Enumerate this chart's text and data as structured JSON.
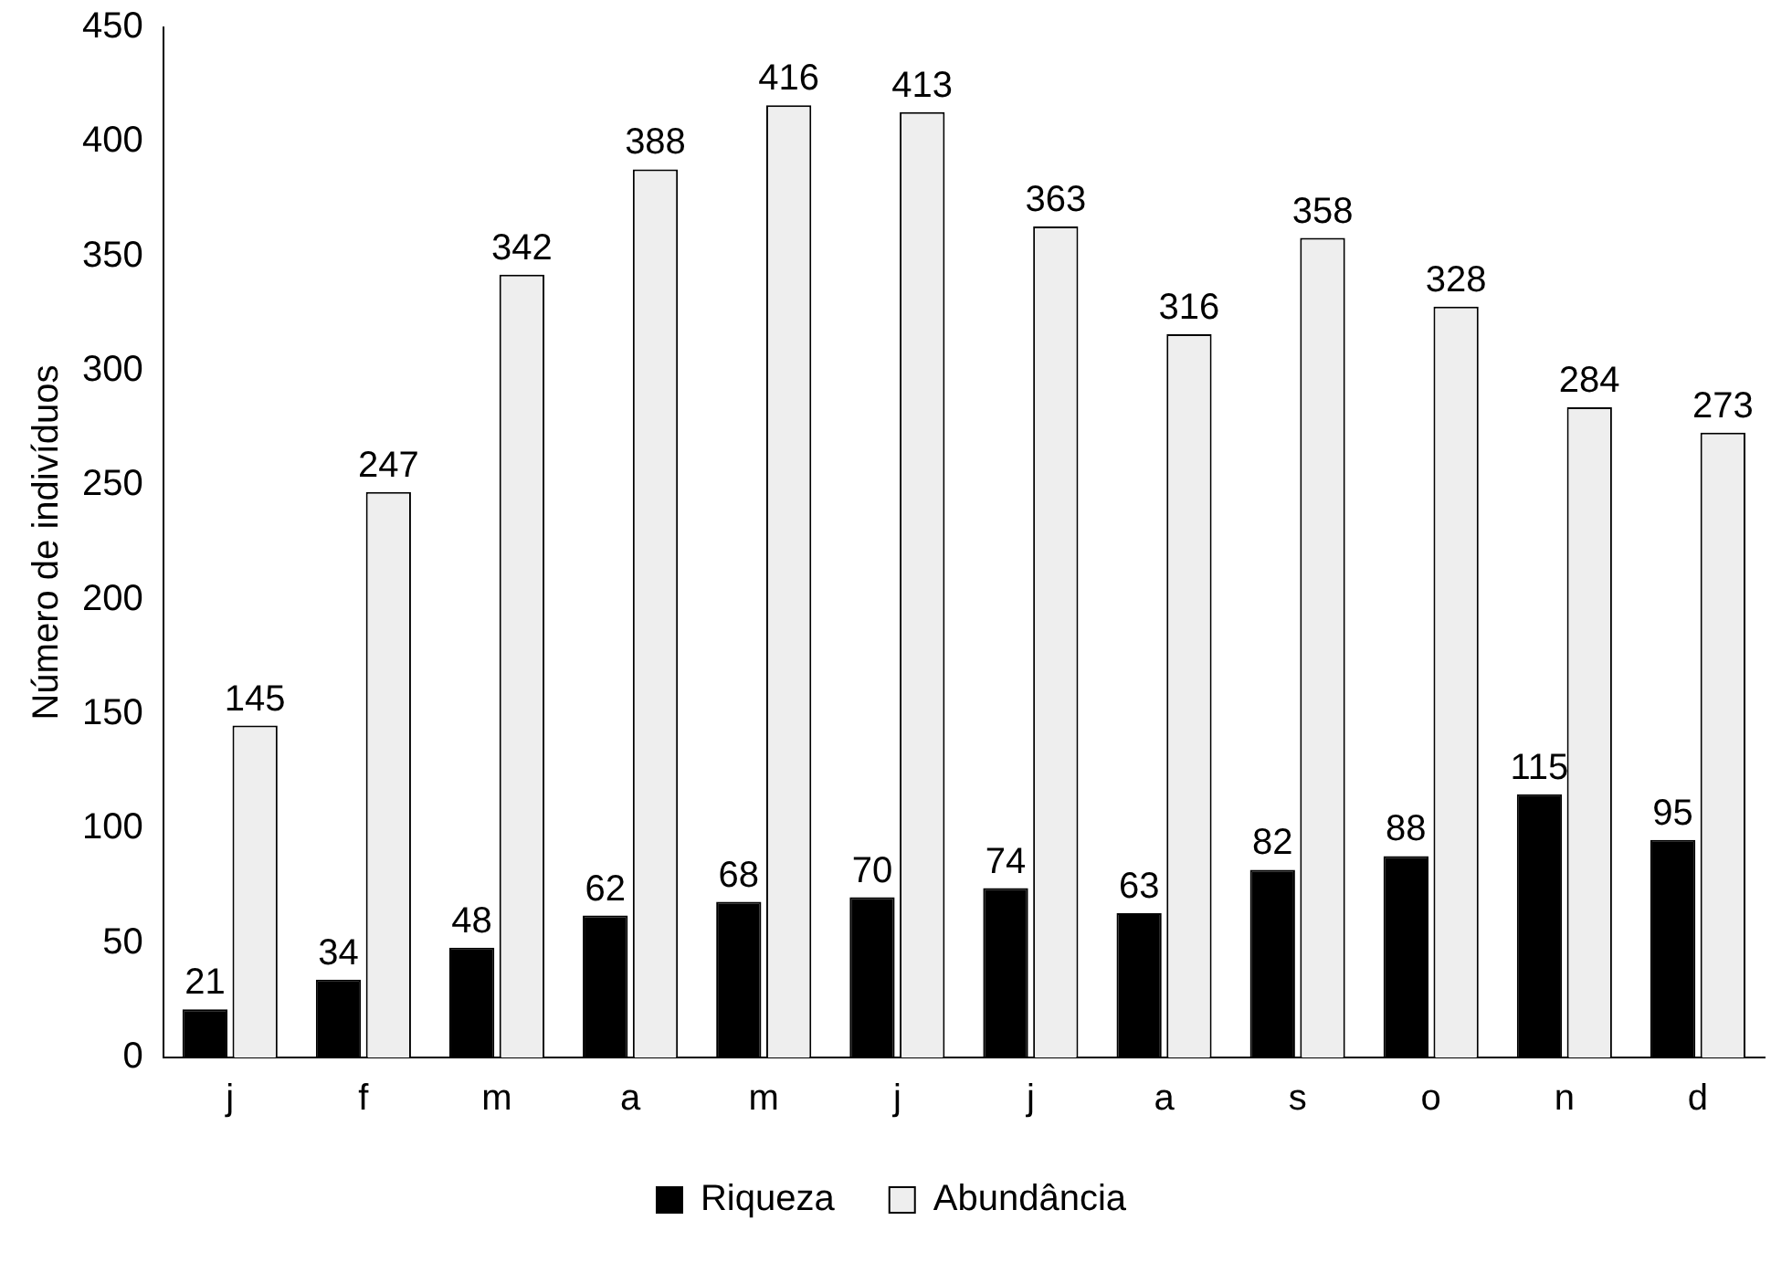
{
  "chart_data": {
    "type": "bar",
    "ylabel": "Número de indivíduos",
    "categories": [
      "j",
      "f",
      "m",
      "a",
      "m",
      "j",
      "j",
      "a",
      "s",
      "o",
      "n",
      "d"
    ],
    "series": [
      {
        "name": "Riqueza",
        "color": "#000000",
        "values": [
          21,
          34,
          48,
          62,
          68,
          70,
          74,
          63,
          82,
          88,
          115,
          95
        ]
      },
      {
        "name": "Abundância",
        "color": "#eeeeee",
        "values": [
          145,
          247,
          342,
          388,
          416,
          413,
          363,
          316,
          358,
          328,
          284,
          273
        ]
      }
    ],
    "ylim": [
      0,
      450
    ],
    "yticks": [
      0,
      50,
      100,
      150,
      200,
      250,
      300,
      350,
      400,
      450
    ],
    "grid": false,
    "legend": "bottom",
    "data_labels": true
  }
}
